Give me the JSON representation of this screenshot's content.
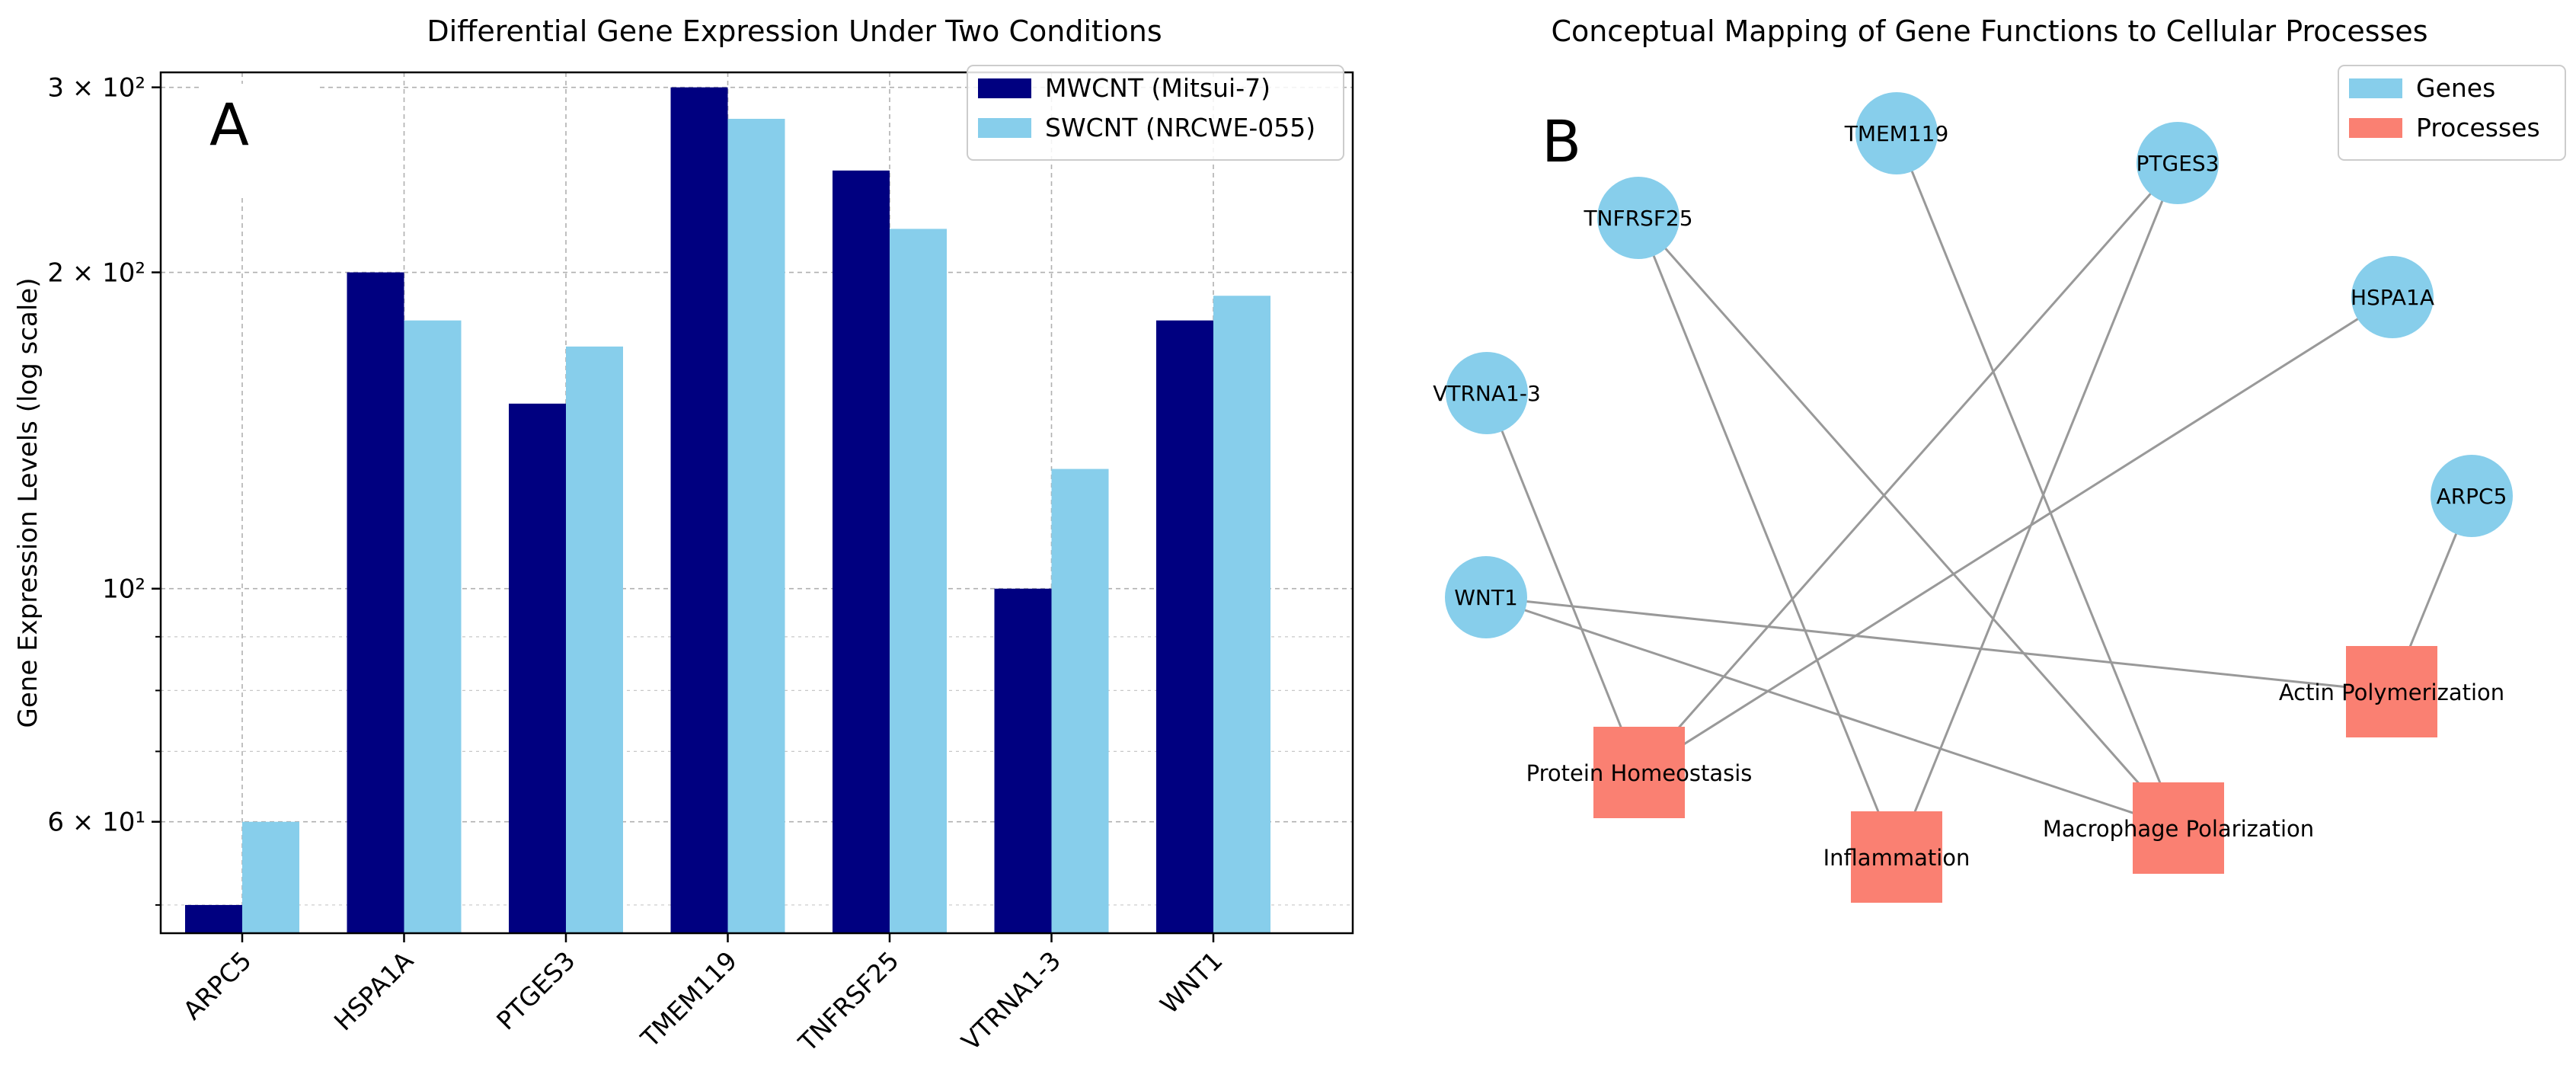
{
  "panel_a": {
    "label": "A",
    "chart_data": {
      "type": "bar",
      "title": "Differential Gene Expression Under Two Conditions",
      "xlabel": "",
      "ylabel": "Gene Expression Levels (log scale)",
      "yscale": "log",
      "ylim": [
        47,
        310
      ],
      "grid": true,
      "legend_position": "top-right",
      "categories": [
        "ARPC5",
        "HSPA1A",
        "PTGES3",
        "TMEM119",
        "TNFRSF25",
        "VTRNA1-3",
        "WNT1"
      ],
      "series": [
        {
          "name": "MWCNT (Mitsui-7)",
          "color": "#000080",
          "values": [
            50,
            200,
            150,
            300,
            250,
            100,
            180
          ]
        },
        {
          "name": "SWCNT (NRCWE-055)",
          "color": "#87ceeb",
          "values": [
            60,
            180,
            170,
            280,
            220,
            130,
            190
          ]
        }
      ],
      "major_ticks": [
        {
          "value": 60,
          "label": "6 × 10¹"
        },
        {
          "value": 100,
          "label": "10²"
        },
        {
          "value": 200,
          "label": "2 × 10²"
        },
        {
          "value": 300,
          "label": "3 × 10²"
        }
      ],
      "minor_ticks": [
        50,
        70,
        80,
        90
      ]
    }
  },
  "panel_b": {
    "label": "B",
    "title": "Conceptual Mapping of Gene Functions to Cellular Processes",
    "legend": [
      {
        "name": "Genes",
        "color": "#87ceeb"
      },
      {
        "name": "Processes",
        "color": "#fa8072"
      }
    ],
    "genes": [
      "TMEM119",
      "PTGES3",
      "TNFRSF25",
      "HSPA1A",
      "VTRNA1-3",
      "ARPC5",
      "WNT1"
    ],
    "processes": [
      "Actin Polymerization",
      "Protein Homeostasis",
      "Inflammation",
      "Macrophage Polarization"
    ],
    "edges": [
      [
        "TMEM119",
        "Macrophage Polarization"
      ],
      [
        "PTGES3",
        "Protein Homeostasis"
      ],
      [
        "PTGES3",
        "Inflammation"
      ],
      [
        "TNFRSF25",
        "Inflammation"
      ],
      [
        "TNFRSF25",
        "Macrophage Polarization"
      ],
      [
        "HSPA1A",
        "Protein Homeostasis"
      ],
      [
        "VTRNA1-3",
        "Protein Homeostasis"
      ],
      [
        "ARPC5",
        "Actin Polymerization"
      ],
      [
        "WNT1",
        "Actin Polymerization"
      ],
      [
        "WNT1",
        "Macrophage Polarization"
      ]
    ]
  }
}
